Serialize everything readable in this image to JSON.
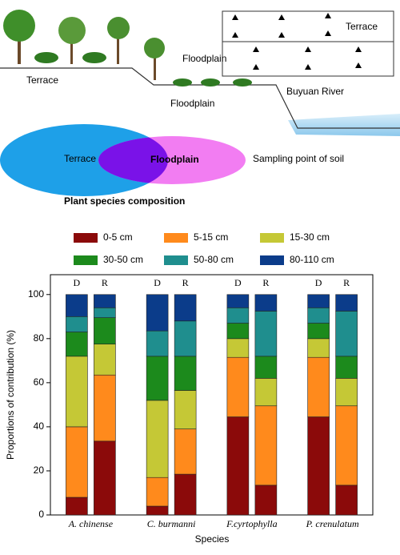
{
  "diagram": {
    "terrace_label": "Terrace",
    "floodplain_label": "Floodplain",
    "river_label": "Buyuan River",
    "box_terrace": "Terrace",
    "box_floodplain": "Floodplain",
    "venn_terrace": "Terrace",
    "venn_floodplain": "Floodplain",
    "venn_caption": "Plant species composition",
    "sampling_legend": "Sampling point of soil"
  },
  "chart_data": {
    "type": "stacked_bar",
    "x_label": "Species",
    "y_label": "Proportions of contribution (%)",
    "categories": [
      "A. chinense",
      "C. burmanni",
      "F.cyrtophylla",
      "P. crenulatum"
    ],
    "subcategories": [
      "D",
      "R"
    ],
    "series": [
      {
        "name": "0-5 cm",
        "color": "#8b0a0a",
        "values": [
          [
            8,
            33.5
          ],
          [
            4,
            18.5
          ],
          [
            44.5,
            13.5
          ],
          [
            44.5,
            13.5
          ]
        ]
      },
      {
        "name": "5-15 cm",
        "color": "#ff8a1c",
        "values": [
          [
            32,
            30
          ],
          [
            13,
            20.5
          ],
          [
            27,
            36
          ],
          [
            27,
            36
          ]
        ]
      },
      {
        "name": "15-30 cm",
        "color": "#c5c836",
        "values": [
          [
            32,
            14
          ],
          [
            35,
            17.5
          ],
          [
            8.5,
            12.5
          ],
          [
            8.5,
            12.5
          ]
        ]
      },
      {
        "name": "30-50 cm",
        "color": "#1c8a1c",
        "values": [
          [
            11,
            12
          ],
          [
            20,
            15.5
          ],
          [
            7,
            10
          ],
          [
            7,
            10
          ]
        ]
      },
      {
        "name": "50-80 cm",
        "color": "#1f8e8e",
        "values": [
          [
            7,
            4.5
          ],
          [
            11.5,
            16
          ],
          [
            7,
            20.5
          ],
          [
            7,
            20.5
          ]
        ]
      },
      {
        "name": "80-110 cm",
        "color": "#0b3c8a",
        "values": [
          [
            10,
            6
          ],
          [
            16.5,
            12
          ],
          [
            6,
            7.5
          ],
          [
            6,
            7.5
          ]
        ]
      }
    ],
    "ylim": [
      0,
      109
    ],
    "yticks": [
      0,
      20,
      40,
      60,
      80,
      100
    ]
  }
}
